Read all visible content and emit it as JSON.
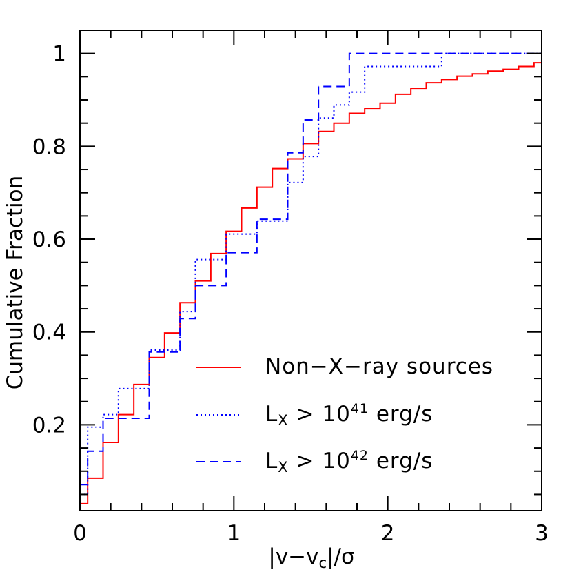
{
  "chart_data": {
    "type": "line",
    "step": true,
    "xlabel": "|v−v",
    "xlabel_sub": "c",
    "xlabel_tail": "|/σ",
    "ylabel": "Cumulative Fraction",
    "xlim": [
      0,
      3
    ],
    "ylim": [
      0.015,
      1.05
    ],
    "x_ticks": [
      0,
      1,
      2,
      3
    ],
    "x_tick_labels": [
      "0",
      "1",
      "2",
      "3"
    ],
    "x_minor_step": 0.2,
    "y_ticks": [
      0.2,
      0.4,
      0.6,
      0.8,
      1.0
    ],
    "y_tick_labels": [
      "0.2",
      "0.4",
      "0.6",
      "0.8",
      "1"
    ],
    "y_minor_step": 0.05,
    "grid": false,
    "legend_position": "bottom-right",
    "series": [
      {
        "name": "Non−X−ray sources",
        "color": "#ff0000",
        "style": "solid",
        "legend_parts": [
          "Non−X−ray sources"
        ],
        "x": [
          0,
          0.05,
          0.15,
          0.25,
          0.35,
          0.45,
          0.55,
          0.65,
          0.75,
          0.85,
          0.95,
          1.05,
          1.15,
          1.25,
          1.35,
          1.45,
          1.55,
          1.65,
          1.75,
          1.85,
          1.95,
          2.05,
          2.15,
          2.25,
          2.35,
          2.45,
          2.55,
          2.65,
          2.75,
          2.85,
          2.95,
          3.0
        ],
        "y": [
          0.03,
          0.085,
          0.162,
          0.222,
          0.287,
          0.345,
          0.398,
          0.463,
          0.51,
          0.569,
          0.617,
          0.667,
          0.712,
          0.752,
          0.773,
          0.806,
          0.832,
          0.85,
          0.871,
          0.882,
          0.893,
          0.912,
          0.925,
          0.937,
          0.944,
          0.951,
          0.956,
          0.962,
          0.966,
          0.972,
          0.98,
          0.98
        ]
      },
      {
        "name": "L_X > 10^41 erg/s",
        "color": "#0000ff",
        "style": "dotted",
        "legend_parts": [
          "L",
          "X",
          " > 10",
          "41",
          " erg/s"
        ],
        "x": [
          0,
          0.05,
          0.15,
          0.25,
          0.35,
          0.45,
          0.55,
          0.65,
          0.75,
          0.85,
          0.95,
          1.05,
          1.15,
          1.25,
          1.35,
          1.45,
          1.55,
          1.65,
          1.75,
          1.85,
          2.35,
          3.0
        ],
        "y": [
          0.05,
          0.195,
          0.222,
          0.278,
          0.278,
          0.361,
          0.361,
          0.444,
          0.556,
          0.556,
          0.611,
          0.611,
          0.639,
          0.639,
          0.722,
          0.778,
          0.861,
          0.889,
          0.917,
          0.972,
          1.0,
          1.0
        ]
      },
      {
        "name": "L_X > 10^42 erg/s",
        "color": "#0000ff",
        "style": "dashed",
        "legend_parts": [
          "L",
          "X",
          " > 10",
          "42",
          " erg/s"
        ],
        "x": [
          0,
          0.05,
          0.15,
          0.25,
          0.35,
          0.45,
          0.55,
          0.65,
          0.75,
          0.85,
          0.95,
          1.05,
          1.15,
          1.25,
          1.35,
          1.45,
          1.55,
          1.65,
          1.75,
          3.0
        ],
        "y": [
          0.071,
          0.143,
          0.214,
          0.214,
          0.214,
          0.357,
          0.357,
          0.429,
          0.5,
          0.5,
          0.571,
          0.571,
          0.643,
          0.643,
          0.786,
          0.857,
          0.929,
          0.929,
          1.0,
          1.0
        ]
      }
    ]
  }
}
